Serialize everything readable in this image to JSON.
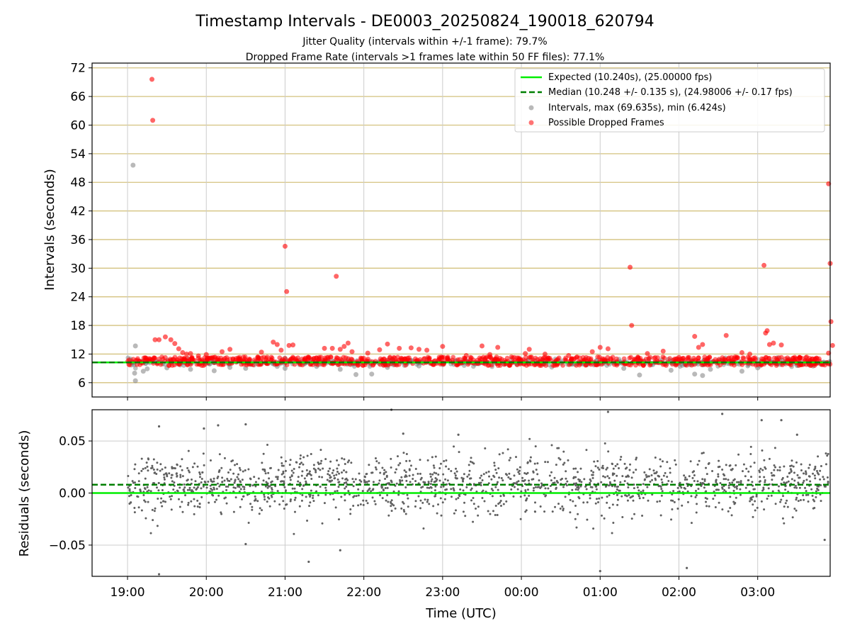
{
  "title": "Timestamp Intervals - DE0003_20250824_190018_620794",
  "subtitle_1": "Jitter Quality (intervals within +/-1 frame): 79.7%",
  "subtitle_2": "Dropped Frame Rate (intervals >1 frames late within 50 FF files): 77.1%",
  "colors": {
    "expected": "#00ee00",
    "median": "#007f00",
    "intervals": "#808080",
    "dropped": "#ff0000",
    "residual_points": "#606060",
    "hgrid_top": "#d4c27f",
    "grid": "#cccccc"
  },
  "chart_data": [
    {
      "type": "scatter",
      "panel": "top",
      "ylabel": "Intervals (seconds)",
      "ylim": [
        3,
        73
      ],
      "yticks": [
        "6",
        "12",
        "18",
        "24",
        "30",
        "36",
        "42",
        "48",
        "54",
        "60",
        "66",
        "72"
      ],
      "xlim_hours": [
        -0.45,
        8.92
      ],
      "grid": "both",
      "legend_position": "top-right",
      "legend": [
        "Expected (10.240s), (25.00000 fps)",
        "Median (10.248 +/- 0.135 s), (24.98006 +/- 0.17 fps)",
        "Intervals, max (69.635s), min (6.424s)",
        "Possible Dropped Frames"
      ],
      "expected_interval": 10.24,
      "median_interval": 10.248,
      "interval_stats": {
        "max": 69.635,
        "min": 6.424
      },
      "series": [
        {
          "name": "Intervals, max (69.635s), min (6.424s)",
          "points": [
            [
              0.07,
              51.6
            ],
            [
              0.1,
              13.7
            ],
            [
              0.09,
              8.0
            ],
            [
              0.1,
              6.4
            ],
            [
              0.2,
              8.4
            ],
            [
              0.25,
              8.9
            ],
            [
              0.5,
              9.1
            ],
            [
              0.8,
              8.8
            ],
            [
              1.1,
              8.5
            ],
            [
              1.3,
              9.2
            ],
            [
              1.5,
              9.0
            ],
            [
              1.9,
              9.4
            ],
            [
              2.0,
              9.0
            ],
            [
              2.4,
              9.4
            ],
            [
              2.7,
              8.8
            ],
            [
              2.9,
              7.7
            ],
            [
              3.1,
              7.8
            ],
            [
              3.3,
              9.2
            ],
            [
              3.7,
              9.5
            ],
            [
              4.0,
              9.8
            ],
            [
              4.5,
              10.2
            ],
            [
              5.0,
              10.1
            ],
            [
              5.5,
              10.3
            ],
            [
              6.0,
              10.1
            ],
            [
              6.3,
              9.0
            ],
            [
              6.5,
              7.6
            ],
            [
              6.9,
              8.6
            ],
            [
              7.2,
              7.8
            ],
            [
              7.3,
              7.5
            ],
            [
              7.4,
              8.8
            ],
            [
              7.8,
              8.4
            ],
            [
              8.0,
              9.1
            ],
            [
              8.5,
              9.6
            ],
            [
              8.8,
              9.9
            ]
          ]
        },
        {
          "name": "Possible Dropped Frames",
          "points": [
            [
              0.31,
              69.6
            ],
            [
              0.32,
              61.0
            ],
            [
              0.35,
              15.0
            ],
            [
              0.4,
              15.0
            ],
            [
              0.48,
              15.6
            ],
            [
              0.55,
              15.0
            ],
            [
              0.6,
              14.2
            ],
            [
              0.65,
              13.1
            ],
            [
              0.7,
              12.3
            ],
            [
              0.75,
              12.0
            ],
            [
              0.8,
              12.1
            ],
            [
              0.9,
              11.6
            ],
            [
              1.0,
              11.9
            ],
            [
              1.2,
              12.5
            ],
            [
              1.3,
              13.0
            ],
            [
              1.7,
              12.4
            ],
            [
              1.85,
              14.5
            ],
            [
              1.9,
              14.0
            ],
            [
              1.95,
              12.8
            ],
            [
              2.05,
              13.8
            ],
            [
              2.1,
              13.9
            ],
            [
              2.0,
              34.6
            ],
            [
              2.02,
              25.1
            ],
            [
              2.4,
              11.2
            ],
            [
              2.5,
              13.2
            ],
            [
              2.6,
              13.2
            ],
            [
              2.65,
              28.3
            ],
            [
              2.7,
              13.0
            ],
            [
              2.75,
              13.6
            ],
            [
              2.8,
              14.3
            ],
            [
              2.85,
              12.5
            ],
            [
              3.05,
              12.2
            ],
            [
              3.2,
              12.9
            ],
            [
              3.3,
              14.1
            ],
            [
              3.45,
              13.2
            ],
            [
              3.6,
              13.3
            ],
            [
              3.7,
              13.0
            ],
            [
              3.8,
              12.8
            ],
            [
              4.0,
              13.6
            ],
            [
              4.3,
              11.7
            ],
            [
              4.5,
              13.7
            ],
            [
              4.6,
              11.9
            ],
            [
              4.7,
              13.4
            ],
            [
              5.05,
              12.1
            ],
            [
              5.1,
              13.0
            ],
            [
              5.3,
              12.0
            ],
            [
              5.6,
              11.7
            ],
            [
              5.9,
              12.5
            ],
            [
              6.0,
              13.4
            ],
            [
              6.1,
              13.1
            ],
            [
              6.38,
              30.2
            ],
            [
              6.4,
              18.0
            ],
            [
              6.6,
              12.1
            ],
            [
              6.8,
              12.6
            ],
            [
              7.0,
              11.3
            ],
            [
              7.2,
              15.7
            ],
            [
              7.3,
              14.0
            ],
            [
              7.25,
              13.4
            ],
            [
              7.6,
              15.9
            ],
            [
              7.8,
              12.3
            ],
            [
              7.9,
              12.0
            ],
            [
              8.08,
              30.6
            ],
            [
              8.1,
              16.4
            ],
            [
              8.12,
              16.9
            ],
            [
              8.15,
              14.0
            ],
            [
              8.2,
              14.3
            ],
            [
              8.3,
              13.9
            ],
            [
              8.9,
              47.7
            ],
            [
              8.92,
              31.0
            ],
            [
              8.93,
              18.8
            ],
            [
              8.95,
              13.8
            ],
            [
              8.9,
              12.2
            ]
          ],
          "band": {
            "from_hours": 0.0,
            "to_hours": 8.92,
            "y_range": [
              9.6,
              11.4
            ],
            "note": "dense band of many dropped-frame points around the median"
          }
        },
        {
          "name": "Expected (10.240s), (25.00000 fps)",
          "type": "hline",
          "y": 10.24
        },
        {
          "name": "Median (10.248 +/- 0.135 s), (24.98006 +/- 0.17 fps)",
          "type": "hline",
          "y": 10.248,
          "style": "dashed"
        }
      ]
    },
    {
      "type": "scatter",
      "panel": "bottom",
      "ylabel": "Residuals (seconds)",
      "xlabel": "Time (UTC)",
      "ylim": [
        -0.08,
        0.08
      ],
      "yticks": [
        "0.05",
        "0.00",
        "−0.05"
      ],
      "ytick_values": [
        0.05,
        0.0,
        -0.05
      ],
      "xlim_hours": [
        -0.45,
        8.92
      ],
      "xticks": [
        "19:00",
        "20:00",
        "21:00",
        "22:00",
        "23:00",
        "00:00",
        "01:00",
        "02:00",
        "03:00"
      ],
      "xtick_hours": [
        0,
        1,
        2,
        3,
        4,
        5,
        6,
        7,
        8
      ],
      "grid": "both",
      "reference_lines": [
        {
          "name": "expected",
          "y": 0.0,
          "style": "solid"
        },
        {
          "name": "median",
          "y": 0.008,
          "style": "dashed"
        }
      ],
      "residual_spread": {
        "center": 0.008,
        "typical_sd": 0.014,
        "min": -0.078,
        "max": 0.078
      },
      "notable_points": [
        [
          0.4,
          0.064
        ],
        [
          0.4,
          -0.078
        ],
        [
          0.97,
          0.062
        ],
        [
          1.15,
          0.065
        ],
        [
          1.5,
          0.066
        ],
        [
          1.5,
          -0.049
        ],
        [
          2.3,
          -0.066
        ],
        [
          2.7,
          -0.055
        ],
        [
          3.35,
          0.08
        ],
        [
          3.5,
          0.057
        ],
        [
          4.2,
          0.056
        ],
        [
          6.0,
          -0.075
        ],
        [
          6.1,
          0.078
        ],
        [
          7.1,
          -0.072
        ],
        [
          7.55,
          0.076
        ],
        [
          8.05,
          0.07
        ],
        [
          8.3,
          0.07
        ],
        [
          8.5,
          0.056
        ],
        [
          8.85,
          -0.045
        ]
      ]
    }
  ]
}
